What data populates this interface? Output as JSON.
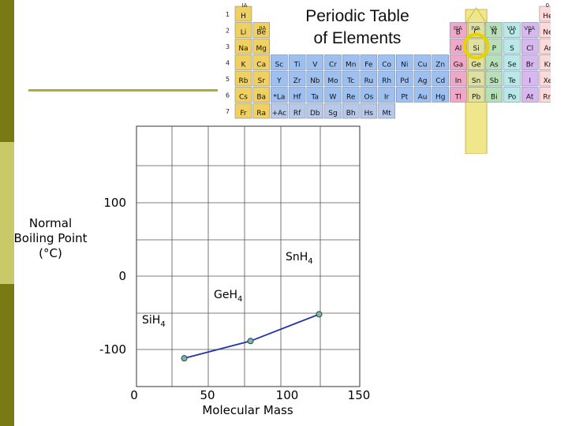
{
  "slide": {
    "colors": {
      "stripe_dark": "#7a7a14",
      "stripe_light": "#c9c96a",
      "rule": "#b0ac3c"
    }
  },
  "periodic_table": {
    "title_line1": "Periodic Table",
    "title_line2": "of Elements",
    "highlight_group": "IVA",
    "highlight_color": "#f0e68c",
    "circle_color": "#e8d200",
    "group_labels": [
      "IA",
      "IIA",
      "IIIA",
      "IVA",
      "VA",
      "VIA",
      "VIIA",
      "0"
    ],
    "period_labels": [
      "1",
      "2",
      "3",
      "4",
      "5",
      "6",
      "7"
    ],
    "element_symbols": [
      "H",
      "He",
      "Li",
      "Be",
      "B",
      "C",
      "N",
      "O",
      "F",
      "Ne",
      "Na",
      "Mg",
      "Al",
      "Si",
      "P",
      "S",
      "Cl",
      "Ar",
      "K",
      "Ca",
      "Sc",
      "Ti",
      "V",
      "Cr",
      "Mn",
      "Fe",
      "Co",
      "Ni",
      "Cu",
      "Zn",
      "Ga",
      "Ge",
      "As",
      "Se",
      "Br",
      "Kr",
      "Rb",
      "Sr",
      "Y",
      "Zr",
      "Nb",
      "Mo",
      "Tc",
      "Ru",
      "Rh",
      "Pd",
      "Ag",
      "Cd",
      "In",
      "Sn",
      "Sb",
      "Te",
      "I",
      "Xe",
      "Cs",
      "Ba",
      "*La",
      "Hf",
      "Ta",
      "W",
      "Re",
      "Os",
      "Ir",
      "Pt",
      "Au",
      "Hg",
      "Tl",
      "Pb",
      "Bi",
      "Po",
      "At",
      "Rn",
      "Fr",
      "Ra",
      "+Ac",
      "Rf",
      "Db",
      "Sg",
      "Bh",
      "Hs",
      "Mt"
    ]
  },
  "chart_data": {
    "type": "scatter",
    "xlabel": "Molecular Mass",
    "ylabel_line1": "Normal",
    "ylabel_line2": "Boiling Point",
    "ylabel_line3": "(°C)",
    "xlim": [
      0,
      150
    ],
    "ylim": [
      -100,
      100
    ],
    "x_ticks": [
      "0",
      "50",
      "100",
      "150"
    ],
    "y_ticks": [
      "100",
      "0",
      "-100"
    ],
    "grid": true,
    "line_color": "#2233aa",
    "marker_color": "#7fbf6f",
    "points": [
      {
        "label": "SiH",
        "sub": "4",
        "x": 32.1,
        "y": -112
      },
      {
        "label": "GeH",
        "sub": "4",
        "x": 76.6,
        "y": -88.5
      },
      {
        "label": "SnH",
        "sub": "4",
        "x": 122.7,
        "y": -52
      }
    ]
  }
}
